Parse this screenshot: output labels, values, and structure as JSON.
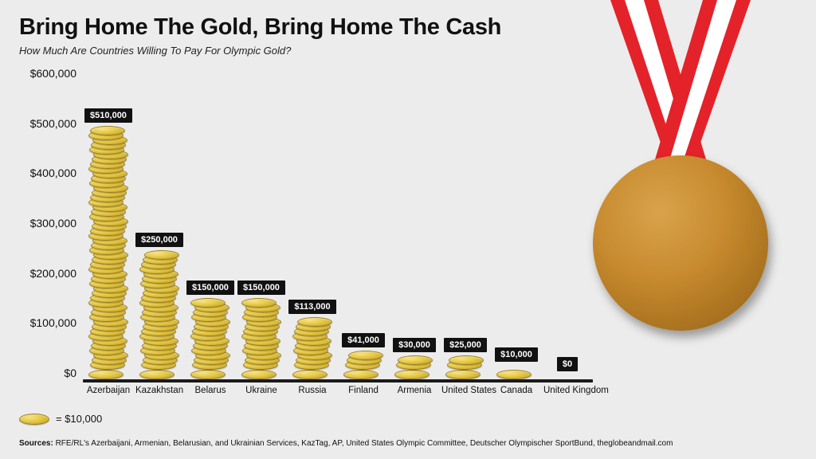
{
  "title": "Bring Home The Gold, Bring Home The Cash",
  "subtitle": "How Much Are Countries Willing To Pay For Olympic Gold?",
  "chart": {
    "type": "bar",
    "ylim": [
      0,
      600000
    ],
    "ytick_step": 100000,
    "yticks": [
      {
        "v": 0,
        "label": "$0"
      },
      {
        "v": 100000,
        "label": "$100,000"
      },
      {
        "v": 200000,
        "label": "$200,000"
      },
      {
        "v": 300000,
        "label": "$300,000"
      },
      {
        "v": 400000,
        "label": "$400,000"
      },
      {
        "v": 500000,
        "label": "$500,000"
      },
      {
        "v": 600000,
        "label": "$600,000"
      }
    ],
    "coin_value": 10000,
    "coin_color": "#e8cc4a",
    "coin_border": "#9c7e1f",
    "baseline_color": "#1a1a1a",
    "background_color": "#ececec",
    "value_label_bg": "#111111",
    "value_label_fg": "#ffffff",
    "bars": [
      {
        "country": "Azerbaijan",
        "value": 510000,
        "label": "$510,000"
      },
      {
        "country": "Kazakhstan",
        "value": 250000,
        "label": "$250,000"
      },
      {
        "country": "Belarus",
        "value": 150000,
        "label": "$150,000"
      },
      {
        "country": "Ukraine",
        "value": 150000,
        "label": "$150,000"
      },
      {
        "country": "Russia",
        "value": 113000,
        "label": "$113,000"
      },
      {
        "country": "Finland",
        "value": 41000,
        "label": "$41,000"
      },
      {
        "country": "Armenia",
        "value": 30000,
        "label": "$30,000"
      },
      {
        "country": "United States",
        "value": 25000,
        "label": "$25,000"
      },
      {
        "country": "Canada",
        "value": 10000,
        "label": "$10,000"
      },
      {
        "country": "United Kingdom",
        "value": 0,
        "label": "$0"
      }
    ]
  },
  "legend": {
    "text": "= $10,000"
  },
  "sources": {
    "prefix": "Sources:",
    "text": "RFE/RL's Azerbaijani, Armenian, Belarusian, and Ukrainian Services, KazTag, AP, United States Olympic Committee, Deutscher Olympischer SportBund, theglobeandmail.com"
  },
  "medal": {
    "ribbon_outer": "#e4222a",
    "ribbon_inner": "#ffffff",
    "disc_fill": "#c78a2e",
    "disc_highlight": "#d9a34b",
    "disc_shadow": "rgba(0,0,0,0.3)"
  }
}
